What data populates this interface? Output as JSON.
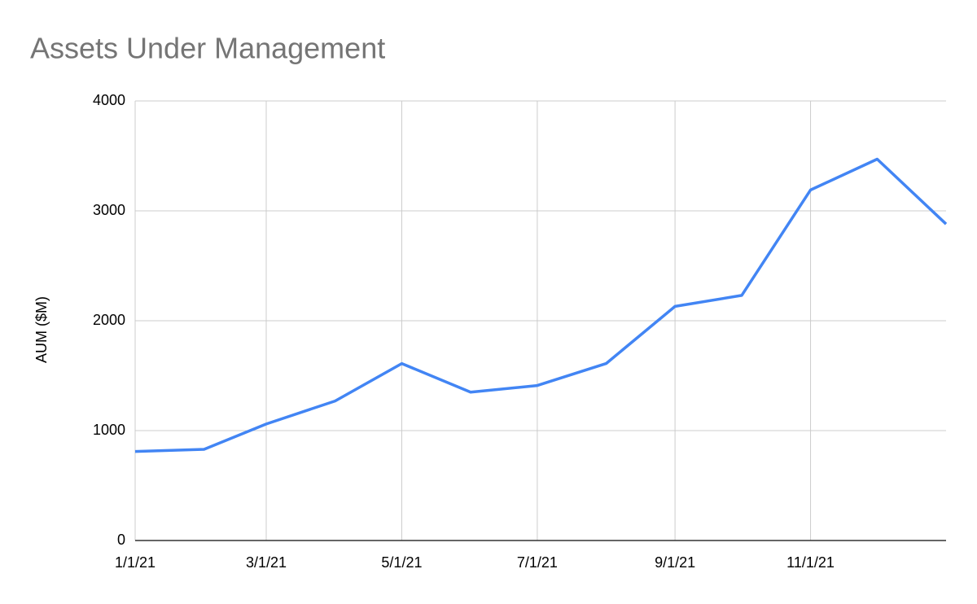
{
  "chart_data": {
    "type": "line",
    "title": "Assets Under Management",
    "y_label": "AUM ($M)",
    "x": [
      "1/1/21",
      "2/1/21",
      "3/1/21",
      "4/1/21",
      "5/1/21",
      "6/1/21",
      "7/1/21",
      "8/1/21",
      "9/1/21",
      "10/1/21",
      "11/1/21",
      "12/1/21",
      "1/1/22"
    ],
    "values": [
      810,
      830,
      1060,
      1270,
      1610,
      1350,
      1410,
      1610,
      2130,
      2230,
      3190,
      3470,
      2880
    ],
    "color": "#4285f4",
    "xlim": [
      "1/1/21",
      "1/1/22"
    ],
    "xticks": [
      "1/1/21",
      "3/1/21",
      "5/1/21",
      "7/1/21",
      "9/1/21",
      "11/1/21"
    ],
    "ylim": [
      0,
      4000
    ],
    "yticks": [
      0,
      1000,
      2000,
      3000,
      4000
    ],
    "grid": true
  }
}
